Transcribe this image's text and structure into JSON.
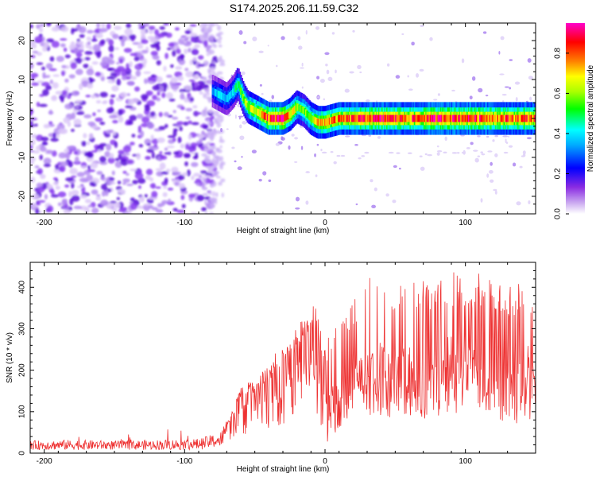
{
  "title": "S174.2025.206.11.59.C32",
  "chart_data": [
    {
      "type": "heatmap",
      "xlabel": "Height of straight line (km)",
      "ylabel": "Frequency (Hz)",
      "xlim": [
        -210,
        150
      ],
      "ylim": [
        -24.5,
        24.5
      ],
      "x_ticks": [
        -200,
        -100,
        0,
        100
      ],
      "y_ticks": [
        -20,
        -10,
        0,
        10,
        20
      ],
      "colorbar": {
        "label": "Normalized spectral amplitude",
        "range": [
          0,
          0.95
        ],
        "ticks": [
          0.0,
          0.2,
          0.4,
          0.6,
          0.8
        ],
        "colormap": [
          "#ffffff",
          "#8a2be2",
          "#0000ff",
          "#00ffff",
          "#00ff00",
          "#ffff00",
          "#ff8000",
          "#ff0000",
          "#ff00ff"
        ]
      },
      "noise_region": {
        "x_from": -210,
        "x_to": -78,
        "freq_from": -24.5,
        "freq_to": 24.5
      },
      "signal_ridge": {
        "x": [
          -80,
          -75,
          -70,
          -65,
          -62,
          -58,
          -55,
          -50,
          -45,
          -40,
          -35,
          -30,
          -25,
          -20,
          -15,
          -10,
          -5,
          0,
          10,
          20,
          40,
          60,
          80,
          100,
          120,
          150
        ],
        "freq": [
          7,
          6,
          5,
          7,
          9,
          5,
          3,
          2,
          1,
          0,
          0,
          0,
          1,
          3,
          2,
          0,
          -1,
          -1,
          0,
          0,
          0,
          0,
          0,
          0,
          0,
          0
        ],
        "amplitude": [
          0.3,
          0.4,
          0.35,
          0.4,
          0.5,
          0.55,
          0.6,
          0.65,
          0.75,
          0.8,
          0.85,
          0.9,
          0.7,
          0.6,
          0.55,
          0.6,
          0.7,
          0.75,
          0.75,
          0.8,
          0.85,
          0.8,
          0.85,
          0.85,
          0.8,
          0.8
        ]
      }
    },
    {
      "type": "line",
      "xlabel": "Height of straight line (km)",
      "ylabel": "SNR (10 * v/v)",
      "xlim": [
        -210,
        150
      ],
      "ylim": [
        0,
        460
      ],
      "x_ticks": [
        -200,
        -100,
        0,
        100
      ],
      "y_ticks": [
        0,
        100,
        200,
        300,
        400
      ],
      "color": "#ee3333",
      "series": [
        {
          "x": [
            -210,
            -180,
            -150,
            -120,
            -90,
            -75,
            -65,
            -60,
            -55,
            -50,
            -45,
            -40,
            -35,
            -30,
            -25,
            -20,
            -15,
            -10,
            -5,
            0,
            5,
            10,
            15,
            20,
            30,
            40,
            50,
            60,
            70,
            80,
            90,
            100,
            110,
            120,
            130,
            140,
            150
          ],
          "upper": [
            30,
            32,
            30,
            32,
            35,
            50,
            110,
            160,
            170,
            165,
            190,
            210,
            240,
            250,
            270,
            300,
            330,
            370,
            330,
            250,
            310,
            320,
            350,
            360,
            420,
            430,
            420,
            410,
            420,
            410,
            430,
            420,
            430,
            410,
            400,
            410,
            380
          ],
          "lower": [
            8,
            8,
            8,
            8,
            8,
            15,
            30,
            50,
            40,
            45,
            50,
            60,
            70,
            60,
            80,
            110,
            100,
            110,
            90,
            20,
            40,
            60,
            70,
            80,
            80,
            90,
            80,
            90,
            80,
            80,
            90,
            90,
            85,
            80,
            75,
            70,
            70
          ]
        }
      ]
    }
  ]
}
